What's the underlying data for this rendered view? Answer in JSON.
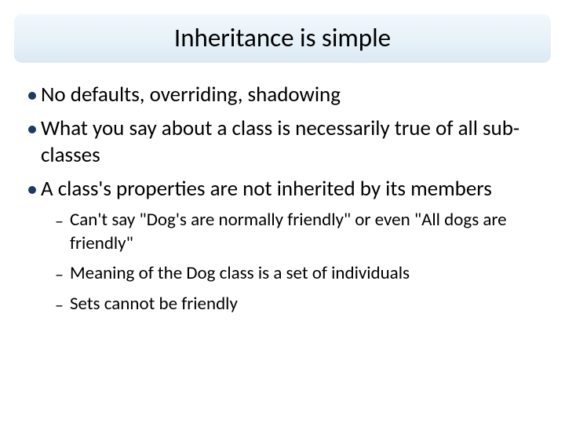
{
  "slide": {
    "title": "Inheritance is simple",
    "title_bg_gradient": [
      "#f2f8fc",
      "#e8f2f9",
      "#dce9f3"
    ],
    "title_fontsize": 33,
    "title_color": "#000000",
    "bullet_color": "#1f3864",
    "bullet_fontsize": 27,
    "sub_fontsize": 23,
    "text_color": "#000000",
    "background_color": "#ffffff",
    "bullets": [
      {
        "text": "No defaults, overriding, shadowing"
      },
      {
        "text": "What you say about a class is necessarily true of all sub-classes"
      },
      {
        "text": "A class's properties are not inherited by its members"
      }
    ],
    "sub_bullets": [
      {
        "text": "Can't say \"Dog's are normally friendly\" or even \"All dogs are friendly\""
      },
      {
        "text": "Meaning of the Dog class is a set of individuals"
      },
      {
        "text": "Sets cannot be friendly"
      }
    ]
  }
}
